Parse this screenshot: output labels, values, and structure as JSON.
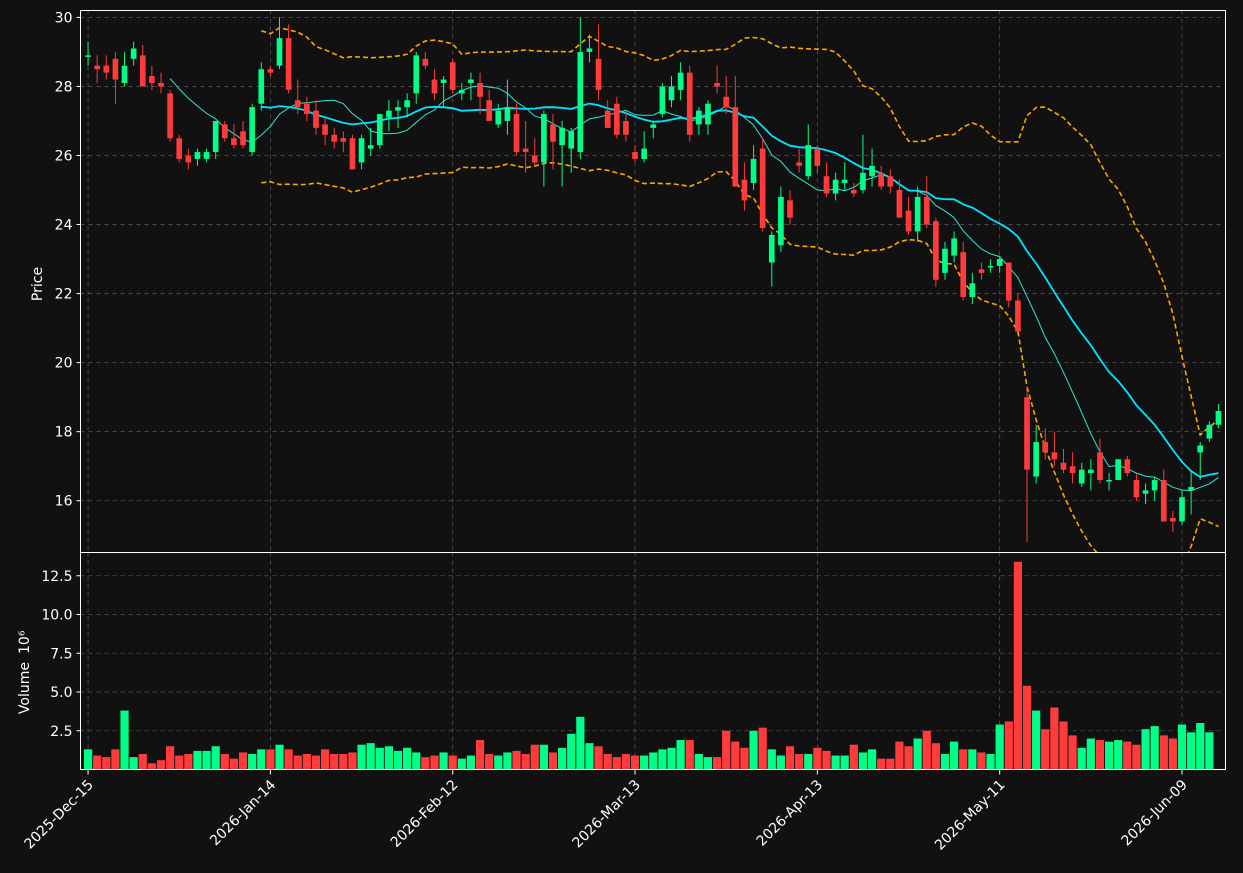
{
  "chart_data": {
    "type": "candlestick",
    "colors": {
      "background": "#111111",
      "up": "#00ff88",
      "down": "#ff3b3b",
      "ma_fast": "#2ee6d6",
      "ma_slow": "#00e5ff",
      "band": "#ffa500",
      "grid": "#555555",
      "text": "#ffffff"
    },
    "x_tick_labels": [
      "2025-Dec-15",
      "2026-Jan-14",
      "2026-Feb-12",
      "2026-Mar-13",
      "2026-Apr-13",
      "2026-May-11",
      "2026-Jun-09"
    ],
    "x_tick_index": [
      0,
      20,
      40,
      60,
      80,
      100,
      120
    ],
    "price_panel": {
      "ylabel": "Price",
      "ylim": [
        14.5,
        30.2
      ],
      "yticks": [
        16,
        18,
        20,
        22,
        24,
        26,
        28,
        30
      ]
    },
    "volume_panel": {
      "ylabel": "Volume",
      "exponent_label": "10⁶",
      "ylim": [
        0,
        14.0
      ],
      "yticks": [
        2.5,
        5.0,
        7.5,
        10.0,
        12.5
      ],
      "ytick_labels": [
        "2.5",
        "5.0",
        "7.5",
        "10.0",
        "12.5"
      ]
    },
    "ohlc": [
      [
        28.9,
        29.3,
        28.6,
        28.9
      ],
      [
        28.6,
        28.9,
        28.1,
        28.5
      ],
      [
        28.6,
        28.9,
        28.2,
        28.4
      ],
      [
        28.8,
        29.0,
        27.5,
        28.2
      ],
      [
        28.1,
        29.0,
        28.0,
        28.6
      ],
      [
        28.8,
        29.3,
        28.6,
        29.1
      ],
      [
        28.9,
        29.2,
        28.0,
        28.0
      ],
      [
        28.3,
        28.6,
        27.9,
        28.1
      ],
      [
        28.1,
        28.4,
        27.8,
        28.0
      ],
      [
        27.8,
        27.9,
        26.4,
        26.5
      ],
      [
        26.5,
        26.6,
        25.8,
        25.9
      ],
      [
        26.0,
        26.2,
        25.6,
        25.8
      ],
      [
        25.9,
        26.2,
        25.7,
        26.1
      ],
      [
        25.9,
        26.2,
        25.8,
        26.1
      ],
      [
        26.1,
        27.0,
        25.9,
        27.0
      ],
      [
        26.9,
        27.0,
        26.4,
        26.5
      ],
      [
        26.5,
        26.9,
        26.2,
        26.3
      ],
      [
        26.7,
        27.0,
        26.2,
        26.3
      ],
      [
        26.1,
        27.5,
        26.0,
        27.4
      ],
      [
        27.5,
        28.7,
        27.3,
        28.5
      ],
      [
        28.5,
        28.6,
        28.3,
        28.4
      ],
      [
        28.6,
        30.0,
        28.5,
        29.4
      ],
      [
        29.4,
        29.8,
        27.8,
        27.9
      ],
      [
        27.6,
        28.2,
        27.2,
        27.4
      ],
      [
        27.5,
        27.7,
        27.0,
        27.2
      ],
      [
        27.3,
        27.6,
        26.6,
        26.8
      ],
      [
        26.9,
        27.1,
        26.3,
        26.6
      ],
      [
        26.6,
        26.8,
        26.2,
        26.4
      ],
      [
        26.5,
        26.7,
        26.1,
        26.4
      ],
      [
        26.5,
        26.6,
        25.6,
        25.6
      ],
      [
        25.8,
        26.6,
        25.6,
        26.5
      ],
      [
        26.2,
        26.8,
        26.0,
        26.3
      ],
      [
        26.3,
        27.2,
        26.2,
        27.2
      ],
      [
        27.1,
        27.6,
        26.7,
        27.3
      ],
      [
        27.3,
        27.6,
        26.8,
        27.4
      ],
      [
        27.4,
        27.8,
        27.1,
        27.6
      ],
      [
        27.8,
        29.0,
        27.5,
        28.9
      ],
      [
        28.8,
        29.0,
        28.5,
        28.6
      ],
      [
        28.2,
        28.5,
        27.6,
        27.8
      ],
      [
        28.1,
        28.3,
        27.4,
        28.2
      ],
      [
        28.7,
        28.8,
        27.8,
        27.9
      ],
      [
        27.8,
        28.1,
        27.6,
        27.9
      ],
      [
        28.1,
        28.4,
        27.6,
        28.2
      ],
      [
        28.1,
        28.4,
        27.2,
        27.7
      ],
      [
        27.6,
        27.9,
        27.0,
        27.0
      ],
      [
        26.9,
        27.5,
        26.8,
        27.3
      ],
      [
        27.0,
        28.2,
        26.6,
        27.4
      ],
      [
        27.2,
        27.5,
        26.0,
        26.1
      ],
      [
        26.2,
        27.0,
        25.5,
        26.1
      ],
      [
        26.0,
        26.5,
        25.7,
        25.8
      ],
      [
        25.8,
        27.3,
        25.1,
        27.2
      ],
      [
        26.9,
        27.2,
        25.6,
        26.4
      ],
      [
        26.3,
        27.0,
        25.1,
        26.8
      ],
      [
        26.2,
        26.8,
        25.5,
        26.7
      ],
      [
        26.1,
        30.0,
        25.9,
        29.0
      ],
      [
        29.0,
        29.5,
        28.7,
        29.1
      ],
      [
        28.8,
        29.8,
        27.6,
        27.9
      ],
      [
        27.3,
        27.6,
        26.9,
        26.8
      ],
      [
        27.5,
        27.7,
        26.5,
        26.6
      ],
      [
        27.0,
        27.3,
        26.4,
        26.6
      ],
      [
        26.1,
        26.3,
        25.8,
        25.9
      ],
      [
        25.9,
        26.7,
        25.8,
        26.2
      ],
      [
        26.8,
        27.0,
        26.5,
        26.9
      ],
      [
        27.2,
        28.1,
        27.1,
        28.0
      ],
      [
        27.6,
        28.3,
        27.4,
        28.0
      ],
      [
        27.9,
        28.7,
        27.6,
        28.4
      ],
      [
        28.4,
        28.6,
        26.4,
        26.6
      ],
      [
        26.9,
        27.4,
        26.6,
        27.3
      ],
      [
        26.9,
        27.6,
        26.6,
        27.5
      ],
      [
        28.1,
        28.6,
        27.8,
        28.0
      ],
      [
        27.7,
        28.3,
        27.2,
        27.4
      ],
      [
        27.4,
        28.3,
        25.1,
        25.1
      ],
      [
        25.3,
        25.8,
        24.4,
        24.7
      ],
      [
        25.2,
        26.3,
        25.0,
        25.9
      ],
      [
        26.2,
        26.5,
        23.8,
        23.9
      ],
      [
        22.9,
        23.8,
        22.2,
        23.7
      ],
      [
        23.4,
        25.1,
        23.2,
        24.8
      ],
      [
        24.7,
        25.0,
        24.0,
        24.2
      ],
      [
        25.8,
        26.2,
        25.5,
        25.7
      ],
      [
        25.4,
        26.9,
        25.3,
        26.3
      ],
      [
        26.2,
        26.3,
        25.5,
        25.7
      ],
      [
        25.4,
        25.8,
        24.8,
        24.9
      ],
      [
        24.9,
        25.5,
        24.7,
        25.3
      ],
      [
        25.2,
        25.8,
        25.0,
        25.3
      ],
      [
        25.0,
        25.2,
        24.8,
        24.9
      ],
      [
        25.0,
        26.6,
        24.9,
        25.5
      ],
      [
        25.4,
        26.2,
        25.1,
        25.7
      ],
      [
        25.5,
        25.7,
        25.0,
        25.1
      ],
      [
        25.4,
        25.6,
        24.9,
        25.1
      ],
      [
        25.0,
        25.3,
        24.3,
        24.2
      ],
      [
        24.4,
        24.8,
        23.7,
        23.8
      ],
      [
        23.8,
        25.1,
        23.5,
        24.8
      ],
      [
        24.8,
        25.4,
        23.9,
        24.0
      ],
      [
        24.1,
        24.2,
        22.2,
        22.4
      ],
      [
        22.6,
        23.5,
        22.4,
        23.3
      ],
      [
        23.1,
        23.8,
        22.9,
        23.6
      ],
      [
        23.2,
        23.5,
        21.8,
        21.9
      ],
      [
        21.9,
        22.6,
        21.7,
        22.3
      ],
      [
        22.7,
        22.9,
        22.4,
        22.6
      ],
      [
        22.8,
        23.0,
        22.6,
        22.8
      ],
      [
        22.8,
        23.1,
        22.6,
        23.0
      ],
      [
        22.9,
        22.9,
        21.6,
        21.8
      ],
      [
        21.8,
        22.0,
        20.9,
        20.9
      ],
      [
        19.0,
        19.3,
        14.8,
        16.9
      ],
      [
        16.7,
        18.2,
        16.5,
        17.7
      ],
      [
        17.7,
        18.1,
        17.2,
        17.4
      ],
      [
        17.4,
        18.0,
        17.0,
        17.2
      ],
      [
        17.1,
        17.5,
        16.8,
        16.9
      ],
      [
        17.0,
        17.4,
        16.5,
        16.8
      ],
      [
        16.5,
        17.1,
        16.4,
        16.9
      ],
      [
        16.8,
        17.2,
        16.3,
        16.9
      ],
      [
        17.4,
        17.8,
        16.5,
        16.6
      ],
      [
        16.6,
        16.8,
        16.3,
        16.6
      ],
      [
        16.6,
        17.2,
        16.6,
        17.2
      ],
      [
        17.2,
        17.3,
        16.7,
        16.8
      ],
      [
        16.6,
        16.8,
        16.0,
        16.1
      ],
      [
        16.2,
        16.5,
        15.9,
        16.3
      ],
      [
        16.3,
        16.7,
        16.0,
        16.6
      ],
      [
        16.6,
        16.9,
        15.4,
        15.4
      ],
      [
        15.5,
        15.7,
        15.1,
        15.4
      ],
      [
        15.4,
        16.3,
        15.3,
        16.1
      ],
      [
        16.3,
        16.9,
        15.6,
        16.4
      ],
      [
        17.4,
        17.7,
        16.6,
        17.6
      ],
      [
        17.8,
        18.3,
        17.7,
        18.2
      ],
      [
        18.2,
        18.8,
        18.1,
        18.6
      ]
    ],
    "volume": [
      1.3,
      0.9,
      0.8,
      1.3,
      3.8,
      0.8,
      1.0,
      0.4,
      0.6,
      1.5,
      0.9,
      1.0,
      1.2,
      1.2,
      1.5,
      1.0,
      0.7,
      1.1,
      1.0,
      1.3,
      1.3,
      1.6,
      1.3,
      0.9,
      1.0,
      0.9,
      1.3,
      1.0,
      1.0,
      1.1,
      1.6,
      1.7,
      1.4,
      1.5,
      1.2,
      1.4,
      1.1,
      0.8,
      0.9,
      1.1,
      0.9,
      0.7,
      0.9,
      1.9,
      1.0,
      0.9,
      1.1,
      1.2,
      1.0,
      1.6,
      1.6,
      1.1,
      1.4,
      2.3,
      3.4,
      1.7,
      1.5,
      1.0,
      0.8,
      1.0,
      0.9,
      0.9,
      1.1,
      1.3,
      1.4,
      1.9,
      1.9,
      1.0,
      0.8,
      0.8,
      2.5,
      1.8,
      1.4,
      2.5,
      2.7,
      1.3,
      0.9,
      1.5,
      1.0,
      1.0,
      1.4,
      1.2,
      0.9,
      0.9,
      1.6,
      1.1,
      1.3,
      0.7,
      0.7,
      1.8,
      1.5,
      2.0,
      2.5,
      1.7,
      1.0,
      1.8,
      1.3,
      1.3,
      1.1,
      1.0,
      2.9,
      3.1,
      13.4,
      5.4,
      3.8,
      2.6,
      4.0,
      3.1,
      2.2,
      1.4,
      2.0,
      1.9,
      1.8,
      1.9,
      1.8,
      1.6,
      2.6,
      2.8,
      2.2,
      2.0,
      2.9,
      2.4,
      3.0,
      2.4
    ]
  }
}
